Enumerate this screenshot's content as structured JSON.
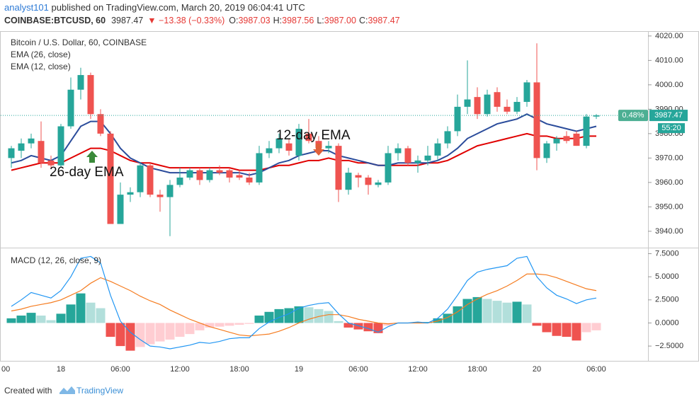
{
  "header": {
    "author": "analyst101",
    "published": " published on TradingView.com, March 20, 2019 06:04:41 UTC",
    "symbol": "COINBASE:BTCUSD, 60",
    "price": "3987.47",
    "change": "▼ −13.38 (−0.33%)",
    "ohlc": [
      {
        "key": "O:",
        "value": "3987.03"
      },
      {
        "key": "H:",
        "value": "3987.56"
      },
      {
        "key": "L:",
        "value": "3987.00"
      },
      {
        "key": "C:",
        "value": "3987.47"
      }
    ]
  },
  "chart_data": [
    {
      "type": "candlestick",
      "title": "Bitcoin / U.S. Dollar, 60, COINBASE",
      "categories": [
        null,
        null,
        null,
        null,
        null,
        "18",
        null,
        null,
        null,
        null,
        null,
        "06:00",
        null,
        null,
        null,
        null,
        null,
        "12:00",
        null,
        null,
        null,
        null,
        null,
        "18:00",
        null,
        null,
        null,
        null,
        null,
        "19",
        null,
        null,
        null,
        null,
        null,
        "06:00",
        null,
        null,
        null,
        null,
        null,
        "12:00",
        null,
        null,
        null,
        null,
        null,
        "18:00",
        null,
        null,
        null,
        null,
        null,
        "20",
        null,
        null,
        null,
        null,
        null,
        "06:00"
      ],
      "clipped_tick_label": "00",
      "open": [
        3970,
        3973,
        3976,
        3977,
        3969,
        3967,
        3983,
        3998,
        4004,
        3988,
        3980,
        3943,
        3955,
        3956,
        3967,
        3955,
        3954,
        3959,
        3962,
        3965,
        3961,
        3965,
        3965,
        3963,
        3962,
        3960,
        3972,
        3974,
        3976,
        3971,
        3980,
        3977,
        3974,
        3975,
        3957,
        3963,
        3962,
        3959,
        3960,
        3972,
        3974,
        3968,
        3969,
        3971,
        3976,
        3981,
        3991,
        3995,
        3988,
        3997,
        3991,
        3989,
        3993,
        4001,
        3970,
        3976,
        3979,
        3980,
        3975,
        3987
      ],
      "high": [
        3975,
        3978,
        3980,
        3985,
        3971,
        3984,
        4003,
        4007,
        4005,
        3990,
        3981,
        3960,
        3958,
        3968,
        3968,
        3957,
        3961,
        3966,
        3966,
        3966,
        3966,
        3967,
        3966,
        3965,
        3964,
        3975,
        3977,
        3980,
        3978,
        3984,
        3986,
        3979,
        3977,
        3976,
        3966,
        3964,
        3963,
        3961,
        3975,
        3976,
        3975,
        3971,
        3975,
        3978,
        3983,
        3996,
        4010,
        3999,
        3998,
        3999,
        3994,
        3995,
        4002,
        4017,
        3977,
        3979,
        3981,
        3981,
        3988,
        3988
      ],
      "low": [
        3966,
        3970,
        3974,
        3966,
        3966,
        3966,
        3982,
        3994,
        3986,
        3979,
        3943,
        3943,
        3952,
        3954,
        3954,
        3948,
        3938,
        3958,
        3961,
        3959,
        3960,
        3963,
        3960,
        3961,
        3959,
        3959,
        3970,
        3972,
        3971,
        3969,
        3976,
        3972,
        3972,
        3952,
        3955,
        3958,
        3955,
        3958,
        3959,
        3969,
        3967,
        3964,
        3967,
        3969,
        3974,
        3979,
        3988,
        3986,
        3987,
        3989,
        3988,
        3988,
        3991,
        3965,
        3968,
        3973,
        3976,
        3975,
        3974,
        3986
      ],
      "close": [
        3974,
        3976,
        3978,
        3968,
        3967,
        3983,
        3998,
        4004,
        3988,
        3980,
        3943,
        3955,
        3956,
        3967,
        3955,
        3954,
        3959,
        3962,
        3965,
        3961,
        3965,
        3964,
        3962,
        3962,
        3960,
        3972,
        3974,
        3978,
        3973,
        3982,
        3977,
        3974,
        3975,
        3957,
        3964,
        3962,
        3959,
        3960,
        3972,
        3974,
        3968,
        3969,
        3971,
        3976,
        3981,
        3991,
        3994,
        3988,
        3996,
        3991,
        3989,
        3993,
        4001,
        3970,
        3976,
        3978,
        3977,
        3975,
        3987,
        3987.47
      ],
      "up_color": "#26a69a",
      "down_color": "#ef5350",
      "series": [
        {
          "name": "EMA (26, close)",
          "color": "#e00000",
          "values": [
            3965,
            3966,
            3967,
            3968,
            3968,
            3968,
            3970,
            3972,
            3974,
            3974,
            3973,
            3971,
            3969,
            3968,
            3968,
            3967,
            3966,
            3966,
            3966,
            3966,
            3966,
            3966,
            3966,
            3965,
            3965,
            3965,
            3966,
            3967,
            3967,
            3968,
            3969,
            3969,
            3970,
            3969,
            3969,
            3968,
            3968,
            3967,
            3967,
            3967,
            3967,
            3967,
            3968,
            3968,
            3969,
            3971,
            3973,
            3975,
            3976,
            3977,
            3978,
            3979,
            3980,
            3979,
            3979,
            3978,
            3978,
            3978,
            3979,
            3979
          ]
        },
        {
          "name": "EMA (12, close)",
          "color": "#2b4c9b",
          "values": [
            3968,
            3969,
            3971,
            3970,
            3969,
            3971,
            3977,
            3983,
            3985,
            3985,
            3980,
            3974,
            3970,
            3968,
            3966,
            3965,
            3964,
            3964,
            3964,
            3964,
            3964,
            3964,
            3964,
            3964,
            3963,
            3964,
            3966,
            3968,
            3969,
            3971,
            3972,
            3973,
            3973,
            3971,
            3970,
            3969,
            3968,
            3967,
            3967,
            3968,
            3968,
            3968,
            3968,
            3969,
            3971,
            3974,
            3978,
            3980,
            3982,
            3984,
            3985,
            3986,
            3988,
            3986,
            3984,
            3983,
            3982,
            3981,
            3982,
            3983
          ]
        }
      ],
      "ylim": [
        3933.3,
        4021.7
      ],
      "yticks": [
        {
          "value": 3940,
          "label": "3940.00"
        },
        {
          "value": 3950,
          "label": "3950.00"
        },
        {
          "value": 3960,
          "label": "3960.00"
        },
        {
          "value": 3970,
          "label": "3970.00"
        },
        {
          "value": 3980,
          "label": "3980.00"
        },
        {
          "value": 3990,
          "label": "3990.00"
        },
        {
          "value": 4000,
          "label": "4000.00"
        },
        {
          "value": 4010,
          "label": "4010.00"
        },
        {
          "value": 4020,
          "label": "4020.00"
        }
      ],
      "last_price": {
        "value": 3987.47,
        "label": "3987.47"
      },
      "change_label": "0.48%",
      "countdown": "55:20",
      "annotations": [
        "26-day EMA",
        "12-day EMA"
      ]
    },
    {
      "type": "macd",
      "title": "MACD (12, 26, close, 9)",
      "macd": {
        "color": "#2196f3",
        "values": [
          1.8,
          2.5,
          3.3,
          3.0,
          2.7,
          3.5,
          5.0,
          7.0,
          7.2,
          6.5,
          3.0,
          0.2,
          -1.0,
          -1.8,
          -2.5,
          -2.6,
          -2.8,
          -2.6,
          -2.4,
          -2.1,
          -2.2,
          -2.0,
          -1.7,
          -1.6,
          -1.6,
          -0.6,
          0.1,
          0.6,
          1.0,
          1.6,
          1.9,
          2.1,
          2.2,
          1.0,
          0.0,
          -0.3,
          -0.6,
          -1.0,
          -0.4,
          0.0,
          0.0,
          0.1,
          0.0,
          0.5,
          1.5,
          3.0,
          4.6,
          5.5,
          5.8,
          6.0,
          6.2,
          7.0,
          7.2,
          5.0,
          3.8,
          3.0,
          2.6,
          2.1,
          2.5,
          2.7
        ]
      },
      "signal": {
        "color": "#f57c20",
        "values": [
          1.3,
          1.5,
          1.8,
          2.0,
          2.2,
          2.5,
          3.0,
          3.5,
          4.3,
          4.9,
          4.5,
          4.0,
          3.5,
          2.9,
          2.4,
          2.0,
          1.4,
          0.9,
          0.4,
          0.0,
          -0.4,
          -0.7,
          -1.0,
          -1.3,
          -1.4,
          -1.3,
          -1.2,
          -0.9,
          -0.5,
          0.0,
          0.4,
          0.7,
          0.9,
          0.9,
          0.7,
          0.4,
          0.2,
          0.0,
          -0.1,
          0.0,
          0.0,
          0.0,
          0.0,
          0.2,
          0.6,
          1.2,
          2.0,
          2.6,
          3.1,
          3.5,
          4.0,
          4.6,
          5.3,
          5.3,
          5.2,
          4.9,
          4.5,
          4.1,
          3.7,
          3.5
        ]
      },
      "histogram": {
        "colors": {
          "grow_above": "#26a69a",
          "fall_above": "#b2dfdb",
          "grow_below": "#ffcdd2",
          "fall_below": "#ef5350"
        },
        "values": [
          0.5,
          0.8,
          1.1,
          0.8,
          0.3,
          1.0,
          2.0,
          3.2,
          2.2,
          1.6,
          -1.5,
          -2.5,
          -3.0,
          -2.6,
          -2.3,
          -2.0,
          -1.8,
          -1.5,
          -1.2,
          -0.8,
          -0.5,
          -0.4,
          -0.3,
          -0.2,
          -0.1,
          0.8,
          1.2,
          1.5,
          1.6,
          1.8,
          1.7,
          1.5,
          1.3,
          0.2,
          -0.5,
          -0.7,
          -0.9,
          -1.1,
          -0.3,
          0.0,
          0.0,
          0.1,
          0.1,
          0.5,
          1.0,
          1.8,
          2.6,
          2.8,
          2.6,
          2.4,
          2.2,
          2.3,
          2.0,
          -0.3,
          -1.0,
          -1.4,
          -1.5,
          -1.9,
          -1.0,
          -0.8
        ]
      },
      "ylim": [
        -4.1,
        8.0
      ],
      "yticks": [
        {
          "value": -2.5,
          "label": "−2.5000"
        },
        {
          "value": 0,
          "label": "0.0000"
        },
        {
          "value": 2.5,
          "label": "2.5000"
        },
        {
          "value": 5,
          "label": "5.0000"
        },
        {
          "value": 7.5,
          "label": "7.5000"
        }
      ]
    }
  ],
  "footer": {
    "created": "Created with",
    "brand": "TradingView"
  }
}
